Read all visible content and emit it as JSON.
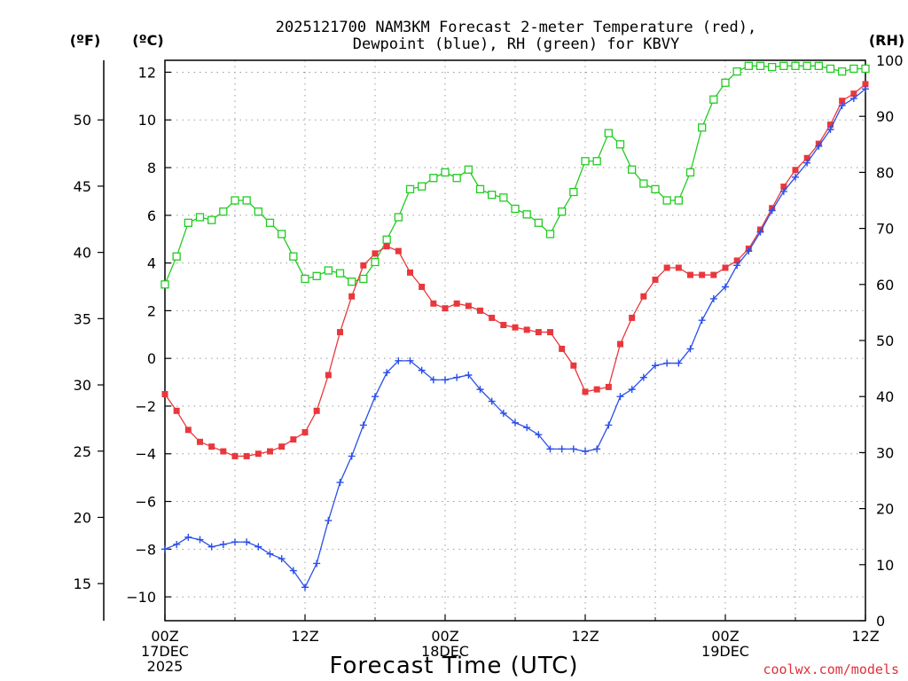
{
  "page": {
    "title_line1": "2025121700 NAM3KM Forecast 2-meter Temperature (red),",
    "title_line2": "Dewpoint (blue), RH (green) for KBVY",
    "xlabel": "Forecast Time (UTC)",
    "credit": "coolwx.com/models",
    "unit_f": "(ºF)",
    "unit_c": "(ºC)",
    "unit_rh": "(RH)"
  },
  "chart_data": {
    "type": "line",
    "title": "2025121700 NAM3KM Forecast 2-meter Temperature (red), Dewpoint (blue), RH (green) for KBVY",
    "xlabel": "Forecast Time (UTC)",
    "x_unit": "forecast hour",
    "xlim": [
      0,
      60
    ],
    "ylim_c": [
      -11,
      12.5
    ],
    "ylim_rh": [
      0,
      100
    ],
    "y_ticks_c": [
      -10,
      -8,
      -6,
      -4,
      -2,
      0,
      2,
      4,
      6,
      8,
      10,
      12
    ],
    "y_ticks_f": [
      15,
      20,
      25,
      30,
      35,
      40,
      45,
      50
    ],
    "y_ticks_rh": [
      0,
      10,
      20,
      30,
      40,
      50,
      60,
      70,
      80,
      90,
      100
    ],
    "x_ticks": [
      {
        "hour": 0,
        "lines": [
          "00Z",
          "17DEC",
          "2025"
        ]
      },
      {
        "hour": 12,
        "lines": [
          "12Z"
        ]
      },
      {
        "hour": 24,
        "lines": [
          "00Z",
          "18DEC"
        ]
      },
      {
        "hour": 36,
        "lines": [
          "12Z"
        ]
      },
      {
        "hour": 48,
        "lines": [
          "00Z",
          "19DEC"
        ]
      },
      {
        "hour": 60,
        "lines": [
          "12Z"
        ]
      }
    ],
    "hours": [
      0,
      1,
      2,
      3,
      4,
      5,
      6,
      7,
      8,
      9,
      10,
      11,
      12,
      13,
      14,
      15,
      16,
      17,
      18,
      19,
      20,
      21,
      22,
      23,
      24,
      25,
      26,
      27,
      28,
      29,
      30,
      31,
      32,
      33,
      34,
      35,
      36,
      37,
      38,
      39,
      40,
      41,
      42,
      43,
      44,
      45,
      46,
      47,
      48,
      49,
      50,
      51,
      52,
      53,
      54,
      55,
      56,
      57,
      58,
      59,
      60
    ],
    "series": [
      {
        "name": "2-meter Temperature",
        "axis": "C",
        "color": "#e8383d",
        "marker": "filled-square",
        "values": [
          -1.5,
          -2.2,
          -3.0,
          -3.5,
          -3.7,
          -3.9,
          -4.1,
          -4.1,
          -4.0,
          -3.9,
          -3.7,
          -3.4,
          -3.1,
          -2.2,
          -0.7,
          1.1,
          2.6,
          3.9,
          4.4,
          4.7,
          4.5,
          3.6,
          3.0,
          2.3,
          2.1,
          2.3,
          2.2,
          2.0,
          1.7,
          1.4,
          1.3,
          1.2,
          1.1,
          1.1,
          0.4,
          -0.3,
          -1.4,
          -1.3,
          -1.2,
          0.6,
          1.7,
          2.6,
          3.3,
          3.8,
          3.8,
          3.5,
          3.5,
          3.5,
          3.8,
          4.1,
          4.6,
          5.4,
          6.3,
          7.2,
          7.9,
          8.4,
          9.0,
          9.8,
          10.8,
          11.1,
          11.5
        ]
      },
      {
        "name": "Dewpoint",
        "axis": "C",
        "color": "#2a4fe8",
        "marker": "plus",
        "values": [
          -8.0,
          -7.8,
          -7.5,
          -7.6,
          -7.9,
          -7.8,
          -7.7,
          -7.7,
          -7.9,
          -8.2,
          -8.4,
          -8.9,
          -9.6,
          -8.6,
          -6.8,
          -5.2,
          -4.1,
          -2.8,
          -1.6,
          -0.6,
          -0.1,
          -0.1,
          -0.5,
          -0.9,
          -0.9,
          -0.8,
          -0.7,
          -1.3,
          -1.8,
          -2.3,
          -2.7,
          -2.9,
          -3.2,
          -3.8,
          -3.8,
          -3.8,
          -3.9,
          -3.8,
          -2.8,
          -1.6,
          -1.3,
          -0.8,
          -0.3,
          -0.2,
          -0.2,
          0.4,
          1.6,
          2.5,
          3.0,
          3.9,
          4.5,
          5.3,
          6.2,
          7.0,
          7.6,
          8.2,
          8.9,
          9.6,
          10.6,
          10.9,
          11.3
        ]
      },
      {
        "name": "RH",
        "axis": "RH",
        "color": "#22cc22",
        "marker": "open-square",
        "values": [
          60,
          65,
          71,
          72,
          71.5,
          73,
          75,
          75,
          73,
          71,
          69,
          65,
          61,
          61.5,
          62.5,
          62,
          60.5,
          61,
          64,
          68,
          72,
          77,
          77.5,
          79,
          80,
          79,
          80.5,
          77,
          76,
          75.5,
          73.5,
          72.5,
          71,
          69,
          73,
          76.5,
          82,
          82,
          87,
          85,
          80.5,
          78,
          77,
          75,
          75,
          80,
          88,
          93,
          96,
          98,
          99,
          99,
          98.8,
          99,
          99,
          99,
          99,
          98.5,
          98,
          98.5,
          98.5
        ]
      }
    ]
  }
}
